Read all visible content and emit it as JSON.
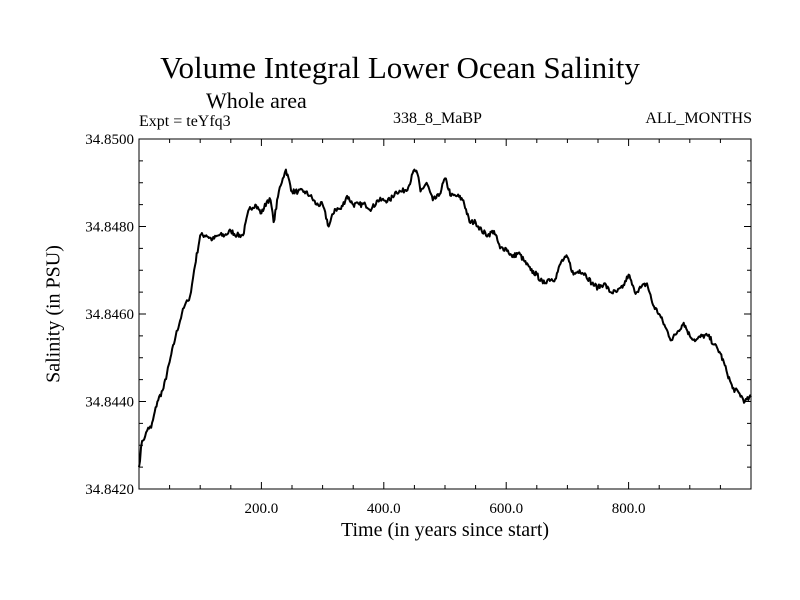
{
  "chart_data": {
    "type": "line",
    "title": "Volume Integral Lower Ocean Salinity",
    "subtitle": "Whole area",
    "annotations": {
      "left": "Expt = teYfq3",
      "center": "338_8_MaBP",
      "right": "ALL_MONTHS"
    },
    "xlabel": "Time (in years since start)",
    "ylabel": "Salinity (in PSU)",
    "xlim": [
      0,
      1000
    ],
    "ylim": [
      34.842,
      34.85
    ],
    "x_ticks": [
      200,
      400,
      600,
      800
    ],
    "x_tick_labels": [
      "200.0",
      "400.0",
      "600.0",
      "800.0"
    ],
    "y_ticks": [
      34.842,
      34.844,
      34.846,
      34.848,
      34.85
    ],
    "y_tick_labels": [
      "34.8420",
      "34.8440",
      "34.8460",
      "34.8480",
      "34.8500"
    ],
    "grid": false,
    "legend": "none",
    "series": [
      {
        "name": "Salinity",
        "color": "#000000",
        "x": [
          0,
          5,
          10,
          15,
          20,
          30,
          40,
          50,
          60,
          70,
          75,
          80,
          85,
          90,
          100,
          110,
          120,
          130,
          140,
          150,
          160,
          170,
          180,
          190,
          200,
          210,
          215,
          220,
          230,
          235,
          240,
          250,
          260,
          270,
          280,
          290,
          300,
          310,
          320,
          330,
          340,
          350,
          360,
          370,
          380,
          390,
          400,
          410,
          420,
          430,
          440,
          450,
          455,
          460,
          470,
          480,
          490,
          500,
          510,
          520,
          530,
          540,
          550,
          560,
          570,
          580,
          590,
          600,
          610,
          620,
          630,
          640,
          650,
          660,
          670,
          680,
          690,
          700,
          710,
          720,
          730,
          740,
          750,
          760,
          770,
          780,
          790,
          800,
          810,
          820,
          830,
          840,
          850,
          860,
          870,
          880,
          890,
          900,
          910,
          920,
          930,
          940,
          950,
          960,
          970,
          980,
          990,
          1000
        ],
        "y": [
          34.8425,
          34.8431,
          34.8432,
          34.8434,
          34.8434,
          34.844,
          34.8443,
          34.8449,
          34.8455,
          34.846,
          34.8462,
          34.8463,
          34.8465,
          34.847,
          34.8478,
          34.8478,
          34.8477,
          34.8478,
          34.8478,
          34.8479,
          34.8478,
          34.8478,
          34.8484,
          34.8485,
          34.8483,
          34.8486,
          34.8486,
          34.8481,
          34.8489,
          34.8491,
          34.8493,
          34.8488,
          34.8488,
          34.8488,
          34.8487,
          34.8485,
          34.8485,
          34.848,
          34.8484,
          34.8484,
          34.8487,
          34.8485,
          34.8485,
          34.8485,
          34.8484,
          34.8486,
          34.8486,
          34.8486,
          34.8488,
          34.8488,
          34.8489,
          34.8493,
          34.8492,
          34.8488,
          34.849,
          34.8486,
          34.8487,
          34.8491,
          34.8487,
          34.8487,
          34.8486,
          34.8481,
          34.8481,
          34.8479,
          34.8478,
          34.8479,
          34.8475,
          34.8475,
          34.8473,
          34.8474,
          34.8472,
          34.847,
          34.8469,
          34.8467,
          34.8468,
          34.8468,
          34.8472,
          34.8473,
          34.8469,
          34.847,
          34.8469,
          34.8467,
          34.8466,
          34.8467,
          34.8465,
          34.8465,
          34.8466,
          34.8469,
          34.8465,
          34.8466,
          34.8467,
          34.8462,
          34.846,
          34.8457,
          34.8454,
          34.8456,
          34.8458,
          34.8455,
          34.8454,
          34.8455,
          34.8455,
          34.8453,
          34.8451,
          34.8447,
          34.8443,
          34.8442,
          34.844,
          34.8441
        ]
      }
    ]
  }
}
